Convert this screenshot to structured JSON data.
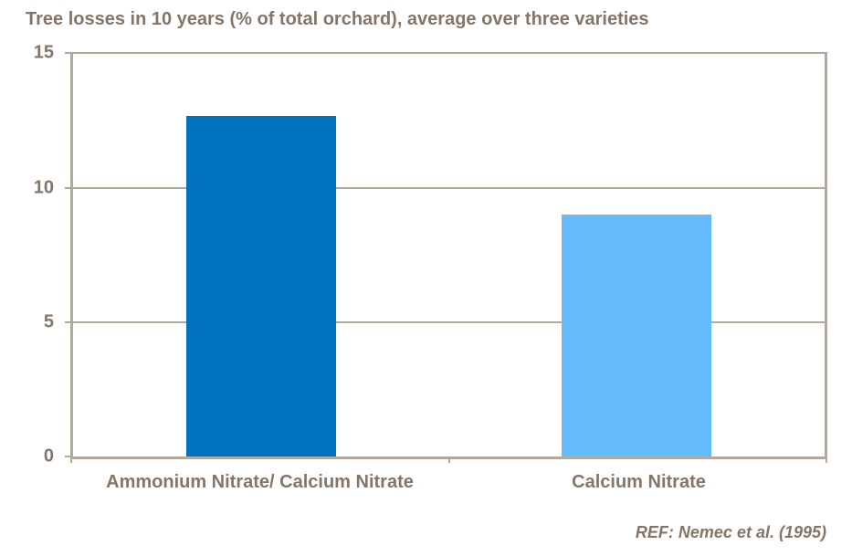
{
  "chart_data": {
    "type": "bar",
    "title": "Tree losses in 10 years (% of total orchard), average over three varieties",
    "categories": [
      "Ammonium Nitrate/ Calcium Nitrate",
      "Calcium Nitrate"
    ],
    "values": [
      12.7,
      9.0
    ],
    "bar_colors": [
      "#0072C0",
      "#66BCFA"
    ],
    "xlabel": "",
    "ylabel": "",
    "ylim": [
      0,
      15
    ],
    "yticks": [
      "15",
      "10",
      "5",
      "0"
    ],
    "grid": true,
    "legend": "none",
    "ref_note": "REF: Nemec et al. (1995)",
    "text_color": "#857567",
    "axis_color": "#B3A99B"
  }
}
